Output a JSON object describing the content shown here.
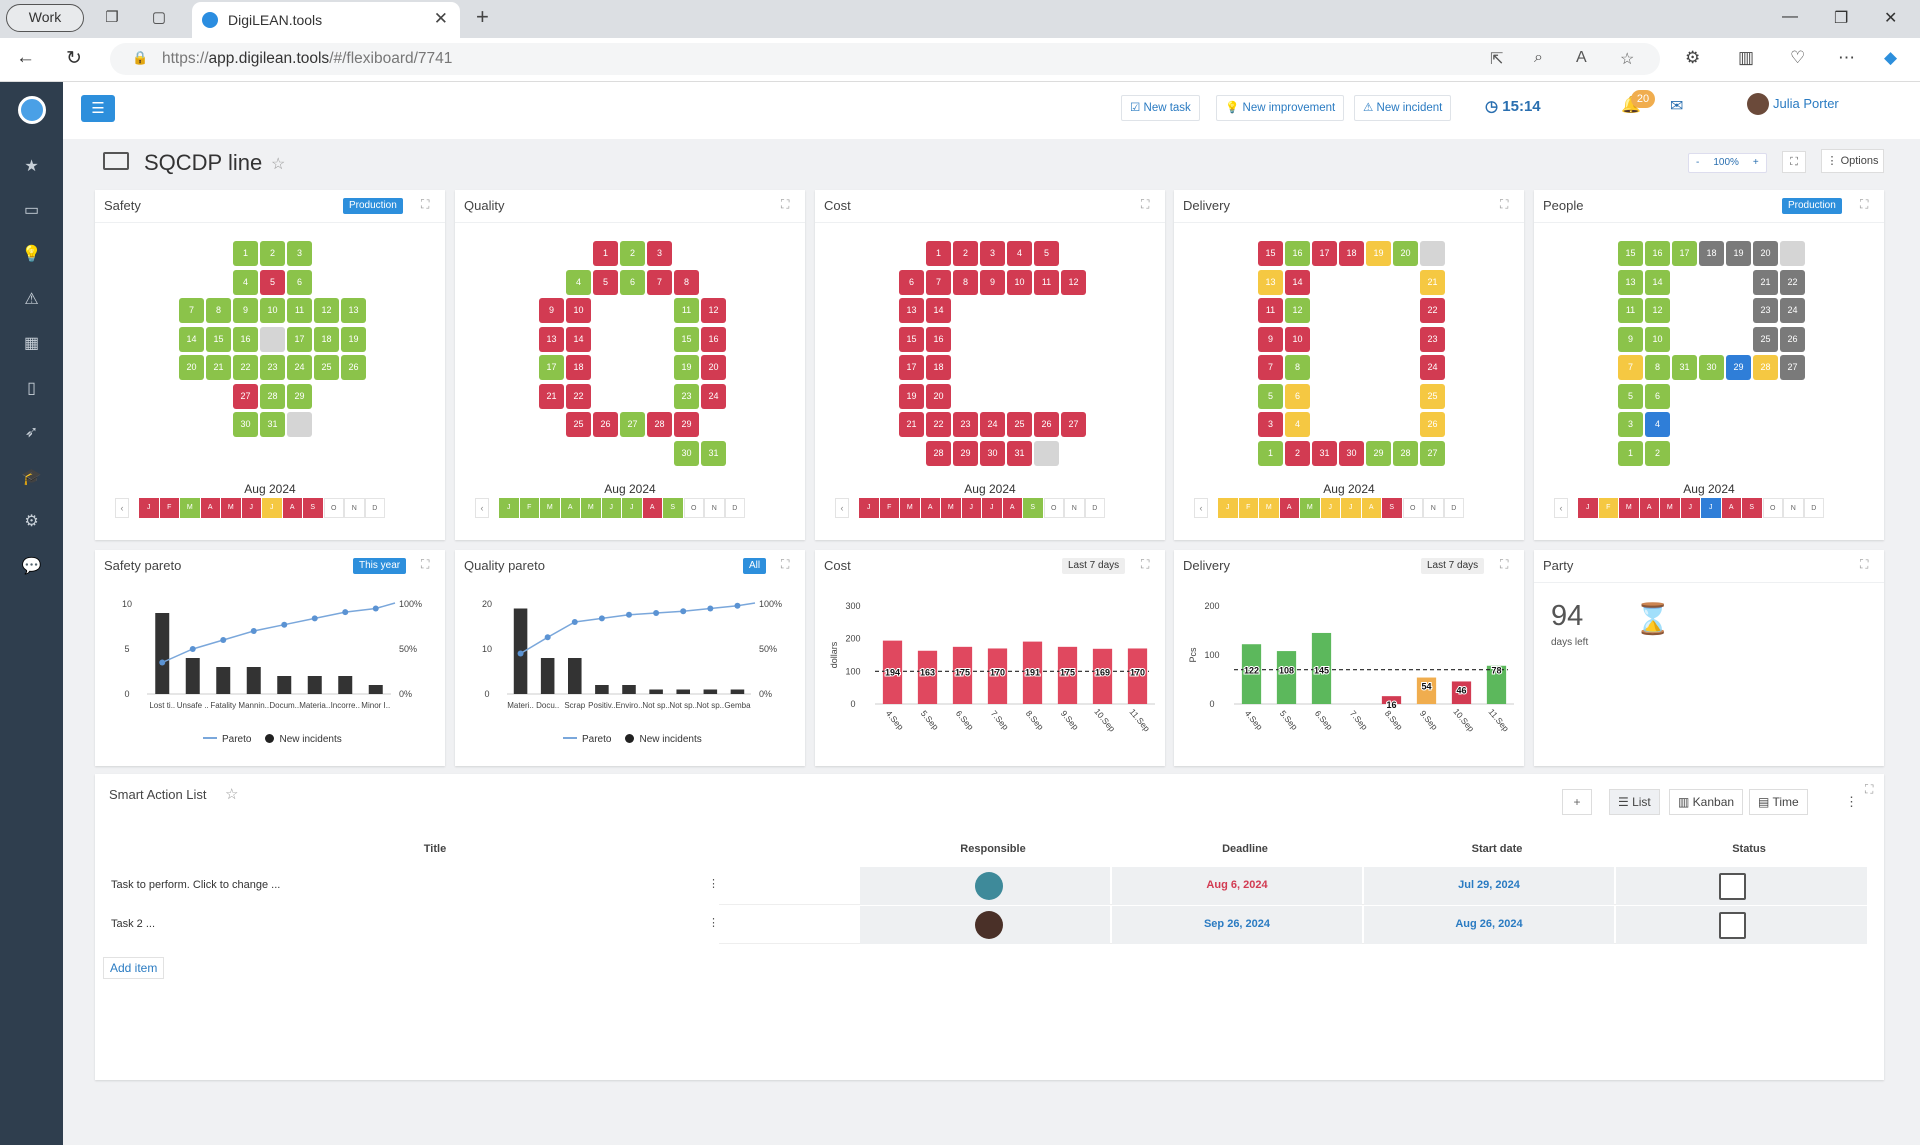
{
  "browser": {
    "profile": "Work",
    "tab_title": "DigiLEAN.tools",
    "url_prefix": "https://",
    "url_host": "app.digilean.tools",
    "url_path": "/#/flexiboard/7741"
  },
  "toolbar": {
    "new_task": "New task",
    "new_improvement": "New improvement",
    "new_incident": "New incident",
    "time": "15:14",
    "notifications": "20",
    "user": "Julia Porter"
  },
  "board": {
    "title": "SQCDP line",
    "zoom_minus": "-",
    "zoom": "100%",
    "zoom_plus": "+",
    "options": "Options"
  },
  "colors": {
    "green": "#8bc34a",
    "red": "#d23b52",
    "yellow": "#f5c842",
    "blue": "#2f7ed8",
    "gray": "#7a7a7a",
    "empty": "#d5d5d5",
    "accent": "#2d8fdc"
  },
  "letters": [
    {
      "title": "Safety",
      "tag": "Production",
      "month": "Aug 2024",
      "cells": [
        [
          "1",
          "G"
        ],
        [
          "2",
          "G"
        ],
        [
          "3",
          "G"
        ],
        [
          "4",
          "G"
        ],
        [
          "5",
          "R"
        ],
        [
          "6",
          "G"
        ],
        [
          "7",
          "G"
        ],
        [
          "8",
          "G"
        ],
        [
          "9",
          "G"
        ],
        [
          "10",
          "G"
        ],
        [
          "11",
          "G"
        ],
        [
          "12",
          "G"
        ],
        [
          "13",
          "G"
        ],
        [
          "14",
          "G"
        ],
        [
          "15",
          "G"
        ],
        [
          "16",
          "G"
        ],
        [
          "",
          "E"
        ],
        [
          "17",
          "G"
        ],
        [
          "18",
          "G"
        ],
        [
          "19",
          "G"
        ],
        [
          "20",
          "G"
        ],
        [
          "21",
          "G"
        ],
        [
          "22",
          "G"
        ],
        [
          "23",
          "G"
        ],
        [
          "24",
          "G"
        ],
        [
          "25",
          "G"
        ],
        [
          "26",
          "G"
        ],
        [
          "27",
          "R"
        ],
        [
          "28",
          "G"
        ],
        [
          "29",
          "G"
        ],
        [
          "30",
          "G"
        ],
        [
          "31",
          "G"
        ],
        [
          "",
          "E"
        ]
      ],
      "months": [
        [
          "J",
          "R"
        ],
        [
          "F",
          "R"
        ],
        [
          "M",
          "G"
        ],
        [
          "A",
          "R"
        ],
        [
          "M",
          "R"
        ],
        [
          "J",
          "R"
        ],
        [
          "J",
          "Y"
        ],
        [
          "A",
          "R"
        ],
        [
          "S",
          "R"
        ],
        [
          "O",
          "W"
        ],
        [
          "N",
          "W"
        ],
        [
          "D",
          "W"
        ]
      ]
    },
    {
      "title": "Quality",
      "tag": "",
      "month": "Aug 2024",
      "cells": [
        [
          "1",
          "R"
        ],
        [
          "2",
          "G"
        ],
        [
          "3",
          "R"
        ],
        [
          "4",
          "G"
        ],
        [
          "5",
          "R"
        ],
        [
          "6",
          "G"
        ],
        [
          "7",
          "R"
        ],
        [
          "8",
          "R"
        ],
        [
          "9",
          "R"
        ],
        [
          "10",
          "R"
        ],
        [
          "11",
          "G"
        ],
        [
          "12",
          "R"
        ],
        [
          "13",
          "R"
        ],
        [
          "14",
          "R"
        ],
        [
          "15",
          "G"
        ],
        [
          "16",
          "R"
        ],
        [
          "17",
          "G"
        ],
        [
          "18",
          "R"
        ],
        [
          "19",
          "G"
        ],
        [
          "20",
          "R"
        ],
        [
          "21",
          "R"
        ],
        [
          "22",
          "R"
        ],
        [
          "23",
          "G"
        ],
        [
          "24",
          "R"
        ],
        [
          "25",
          "R"
        ],
        [
          "26",
          "R"
        ],
        [
          "27",
          "G"
        ],
        [
          "28",
          "R"
        ],
        [
          "29",
          "R"
        ],
        [
          "30",
          "G"
        ],
        [
          "31",
          "G"
        ]
      ],
      "months": [
        [
          "J",
          "G"
        ],
        [
          "F",
          "G"
        ],
        [
          "M",
          "G"
        ],
        [
          "A",
          "G"
        ],
        [
          "M",
          "G"
        ],
        [
          "J",
          "G"
        ],
        [
          "J",
          "G"
        ],
        [
          "A",
          "R"
        ],
        [
          "S",
          "G"
        ],
        [
          "O",
          "W"
        ],
        [
          "N",
          "W"
        ],
        [
          "D",
          "W"
        ]
      ]
    },
    {
      "title": "Cost",
      "tag": "",
      "month": "Aug 2024",
      "cells": [
        [
          "1",
          "R"
        ],
        [
          "2",
          "R"
        ],
        [
          "3",
          "R"
        ],
        [
          "4",
          "R"
        ],
        [
          "5",
          "R"
        ],
        [
          "6",
          "R"
        ],
        [
          "7",
          "R"
        ],
        [
          "8",
          "R"
        ],
        [
          "9",
          "R"
        ],
        [
          "10",
          "R"
        ],
        [
          "11",
          "R"
        ],
        [
          "12",
          "R"
        ],
        [
          "13",
          "R"
        ],
        [
          "14",
          "R"
        ],
        [
          "15",
          "R"
        ],
        [
          "16",
          "R"
        ],
        [
          "17",
          "R"
        ],
        [
          "18",
          "R"
        ],
        [
          "19",
          "R"
        ],
        [
          "20",
          "R"
        ],
        [
          "21",
          "R"
        ],
        [
          "22",
          "R"
        ],
        [
          "23",
          "R"
        ],
        [
          "24",
          "R"
        ],
        [
          "25",
          "R"
        ],
        [
          "26",
          "R"
        ],
        [
          "27",
          "R"
        ],
        [
          "28",
          "R"
        ],
        [
          "29",
          "R"
        ],
        [
          "30",
          "R"
        ],
        [
          "31",
          "R"
        ],
        [
          "",
          "E"
        ]
      ],
      "months": [
        [
          "J",
          "R"
        ],
        [
          "F",
          "R"
        ],
        [
          "M",
          "R"
        ],
        [
          "A",
          "R"
        ],
        [
          "M",
          "R"
        ],
        [
          "J",
          "R"
        ],
        [
          "J",
          "R"
        ],
        [
          "A",
          "R"
        ],
        [
          "S",
          "G"
        ],
        [
          "O",
          "W"
        ],
        [
          "N",
          "W"
        ],
        [
          "D",
          "W"
        ]
      ]
    },
    {
      "title": "Delivery",
      "tag": "",
      "month": "Aug 2024",
      "cells": [
        [
          "15",
          "R"
        ],
        [
          "16",
          "G"
        ],
        [
          "17",
          "R"
        ],
        [
          "18",
          "R"
        ],
        [
          "19",
          "Y"
        ],
        [
          "20",
          "G"
        ],
        [
          "",
          "E"
        ],
        [
          "13",
          "Y"
        ],
        [
          "14",
          "R"
        ],
        [
          "21",
          "Y"
        ],
        [
          "11",
          "R"
        ],
        [
          "12",
          "G"
        ],
        [
          "22",
          "R"
        ],
        [
          "9",
          "R"
        ],
        [
          "10",
          "R"
        ],
        [
          "23",
          "R"
        ],
        [
          "7",
          "R"
        ],
        [
          "8",
          "G"
        ],
        [
          "24",
          "R"
        ],
        [
          "5",
          "G"
        ],
        [
          "6",
          "Y"
        ],
        [
          "25",
          "Y"
        ],
        [
          "3",
          "R"
        ],
        [
          "4",
          "Y"
        ],
        [
          "26",
          "Y"
        ],
        [
          "1",
          "G"
        ],
        [
          "2",
          "R"
        ],
        [
          "31",
          "R"
        ],
        [
          "30",
          "R"
        ],
        [
          "29",
          "G"
        ],
        [
          "28",
          "G"
        ],
        [
          "27",
          "G"
        ]
      ],
      "months": [
        [
          "J",
          "Y"
        ],
        [
          "F",
          "Y"
        ],
        [
          "M",
          "Y"
        ],
        [
          "A",
          "R"
        ],
        [
          "M",
          "G"
        ],
        [
          "J",
          "Y"
        ],
        [
          "J",
          "Y"
        ],
        [
          "A",
          "Y"
        ],
        [
          "S",
          "R"
        ],
        [
          "O",
          "W"
        ],
        [
          "N",
          "W"
        ],
        [
          "D",
          "W"
        ]
      ]
    },
    {
      "title": "People",
      "tag": "Production",
      "month": "Aug 2024",
      "cells": [
        [
          "15",
          "G"
        ],
        [
          "16",
          "G"
        ],
        [
          "17",
          "G"
        ],
        [
          "18",
          "D"
        ],
        [
          "19",
          "D"
        ],
        [
          "20",
          "D"
        ],
        [
          "",
          "E"
        ],
        [
          "13",
          "G"
        ],
        [
          "14",
          "G"
        ],
        [
          "21",
          "D"
        ],
        [
          "22",
          "D"
        ],
        [
          "11",
          "G"
        ],
        [
          "12",
          "G"
        ],
        [
          "23",
          "D"
        ],
        [
          "24",
          "D"
        ],
        [
          "9",
          "G"
        ],
        [
          "10",
          "G"
        ],
        [
          "25",
          "D"
        ],
        [
          "26",
          "D"
        ],
        [
          "7",
          "Y"
        ],
        [
          "8",
          "G"
        ],
        [
          "31",
          "G"
        ],
        [
          "30",
          "G"
        ],
        [
          "29",
          "B"
        ],
        [
          "28",
          "Y"
        ],
        [
          "27",
          "D"
        ],
        [
          "5",
          "G"
        ],
        [
          "6",
          "G"
        ],
        [
          "3",
          "G"
        ],
        [
          "4",
          "B"
        ],
        [
          "1",
          "G"
        ],
        [
          "2",
          "G"
        ]
      ],
      "months": [
        [
          "J",
          "R"
        ],
        [
          "F",
          "Y"
        ],
        [
          "M",
          "R"
        ],
        [
          "A",
          "R"
        ],
        [
          "M",
          "R"
        ],
        [
          "J",
          "R"
        ],
        [
          "J",
          "B"
        ],
        [
          "A",
          "R"
        ],
        [
          "S",
          "R"
        ],
        [
          "O",
          "W"
        ],
        [
          "N",
          "W"
        ],
        [
          "D",
          "W"
        ]
      ]
    }
  ],
  "charts": {
    "safety_pareto": {
      "title": "Safety pareto",
      "tag": "This year",
      "legend_line": "Pareto",
      "legend_bar": "New incidents"
    },
    "quality_pareto": {
      "title": "Quality pareto",
      "tag": "All",
      "legend_line": "Pareto",
      "legend_bar": "New incidents"
    },
    "cost": {
      "title": "Cost",
      "tag": "Last 7 days"
    },
    "delivery": {
      "title": "Delivery",
      "tag": "Last 7 days"
    },
    "party": {
      "title": "Party",
      "days": "94",
      "label": "days left"
    }
  },
  "chart_data": [
    {
      "type": "bar",
      "title": "Safety pareto",
      "categories": [
        "Lost ti..",
        "Unsafe ..",
        "Fatality",
        "Mannin..",
        "Docum..",
        "Materia..",
        "Incorre..",
        "Minor I.."
      ],
      "series": [
        {
          "name": "New incidents",
          "values": [
            9,
            4,
            3,
            3,
            2,
            2,
            2,
            1
          ]
        },
        {
          "name": "Pareto",
          "values": [
            35,
            50,
            60,
            70,
            77,
            84,
            91,
            95
          ]
        }
      ],
      "ylim": [
        0,
        10
      ],
      "y_ticks": [
        "0",
        "5",
        "10"
      ],
      "y2_ticks": [
        "0%",
        "50%",
        "100%"
      ]
    },
    {
      "type": "bar",
      "title": "Quality pareto",
      "categories": [
        "Materi..",
        "Docu..",
        "Scrap",
        "Positiv..",
        "Enviro..",
        "Not sp..",
        "Not sp..",
        "Not sp..",
        "Gemba"
      ],
      "series": [
        {
          "name": "New incidents",
          "values": [
            19,
            8,
            8,
            2,
            2,
            1,
            1,
            1,
            1
          ]
        },
        {
          "name": "Pareto",
          "values": [
            45,
            63,
            80,
            84,
            88,
            90,
            92,
            95,
            98
          ]
        }
      ],
      "ylim": [
        0,
        20
      ],
      "y_ticks": [
        "0",
        "10",
        "20"
      ],
      "y2_ticks": [
        "0%",
        "50%",
        "100%"
      ]
    },
    {
      "type": "bar",
      "title": "Cost",
      "ylabel": "dollars",
      "categories": [
        "4.Sep",
        "5.Sep",
        "6.Sep",
        "7.Sep",
        "8.Sep",
        "9.Sep",
        "10.Sep",
        "11.Sep"
      ],
      "values": [
        194,
        163,
        175,
        170,
        191,
        175,
        169,
        170
      ],
      "target": 100,
      "ylim": [
        0,
        300
      ],
      "y_ticks": [
        "0",
        "100",
        "200",
        "300"
      ]
    },
    {
      "type": "bar",
      "title": "Delivery",
      "ylabel": "Pcs",
      "categories": [
        "4.Sep",
        "5.Sep",
        "6.Sep",
        "7.Sep",
        "8.Sep",
        "9.Sep",
        "10.Sep",
        "11.Sep"
      ],
      "values": [
        122,
        108,
        145,
        0,
        16,
        54,
        46,
        78
      ],
      "bar_colors": [
        "G",
        "G",
        "G",
        "G",
        "R",
        "O",
        "R",
        "G"
      ],
      "target": 70,
      "ylim": [
        0,
        200
      ],
      "y_ticks": [
        "0",
        "100",
        "200"
      ]
    }
  ],
  "sal": {
    "title": "Smart Action List",
    "plus": "+",
    "views": [
      "List",
      "Kanban",
      "Time"
    ],
    "columns": [
      "Title",
      "Responsible",
      "Deadline",
      "Start date",
      "Status"
    ],
    "rows": [
      {
        "title": "Task to perform. Click to change ...",
        "deadline": "Aug 6, 2024",
        "start": "Jul 29, 2024"
      },
      {
        "title": "Task 2 ...",
        "deadline": "Sep 26, 2024",
        "start": "Aug 26, 2024"
      }
    ],
    "add_item": "Add item"
  }
}
